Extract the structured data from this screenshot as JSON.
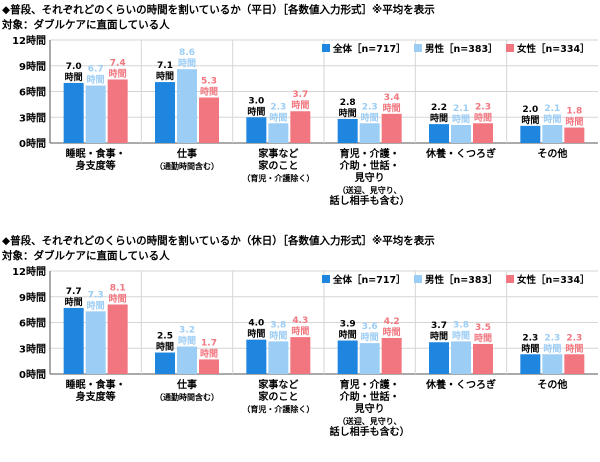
{
  "chart_data": [
    {
      "type": "bar",
      "title": "◆普段、それぞれどのくらいの時間を割いているか（平日）［各数値入力形式］※平均を表示",
      "subtitle": "対象：ダブルケアに直面している人",
      "ylim": [
        0,
        12
      ],
      "yticks": [
        "0時間",
        "3時間",
        "6時間",
        "9時間",
        "12時間"
      ],
      "ytick_values": [
        0,
        3,
        6,
        9,
        12
      ],
      "value_unit": "時間",
      "categories": [
        [
          "睡眠・食事・",
          "身支度等"
        ],
        [
          "仕事",
          "（通勤時間含む）"
        ],
        [
          "家事など",
          "家のこと",
          "（育児・介護除く）"
        ],
        [
          "育児・介護・",
          "介助・世話・",
          "見守り",
          "（送迎、見守り、",
          "話し相手も含む）"
        ],
        [
          "休養・くつろぎ"
        ],
        [
          "その他"
        ]
      ],
      "series": [
        {
          "name": "全体［n=717］",
          "color": "#1f86e0",
          "values": [
            7.0,
            7.1,
            3.0,
            2.8,
            2.2,
            2.0
          ]
        },
        {
          "name": "男性［n=383］",
          "color": "#9ccdf5",
          "values": [
            6.7,
            8.6,
            2.3,
            2.3,
            2.1,
            2.1
          ]
        },
        {
          "name": "女性［n=334］",
          "color": "#f2767f",
          "values": [
            7.4,
            5.3,
            3.7,
            3.4,
            2.3,
            1.8
          ]
        }
      ],
      "legend": "top-right"
    },
    {
      "type": "bar",
      "title": "◆普段、それぞれどのくらいの時間を割いているか（休日）［各数値入力形式］※平均を表示",
      "subtitle": "対象：ダブルケアに直面している人",
      "ylim": [
        0,
        12
      ],
      "yticks": [
        "0時間",
        "3時間",
        "6時間",
        "9時間",
        "12時間"
      ],
      "ytick_values": [
        0,
        3,
        6,
        9,
        12
      ],
      "value_unit": "時間",
      "categories": [
        [
          "睡眠・食事・",
          "身支度等"
        ],
        [
          "仕事",
          "（通勤時間含む）"
        ],
        [
          "家事など",
          "家のこと",
          "（育児・介護除く）"
        ],
        [
          "育児・介護・",
          "介助・世話・",
          "見守り",
          "（送迎、見守り、",
          "話し相手も含む）"
        ],
        [
          "休養・くつろぎ"
        ],
        [
          "その他"
        ]
      ],
      "series": [
        {
          "name": "全体［n=717］",
          "color": "#1f86e0",
          "values": [
            7.7,
            2.5,
            4.0,
            3.9,
            3.7,
            2.3
          ]
        },
        {
          "name": "男性［n=383］",
          "color": "#9ccdf5",
          "values": [
            7.3,
            3.2,
            3.8,
            3.6,
            3.8,
            2.3
          ]
        },
        {
          "name": "女性［n=334］",
          "color": "#f2767f",
          "values": [
            8.1,
            1.7,
            4.3,
            4.2,
            3.5,
            2.3
          ]
        }
      ],
      "legend": "top-right"
    }
  ]
}
